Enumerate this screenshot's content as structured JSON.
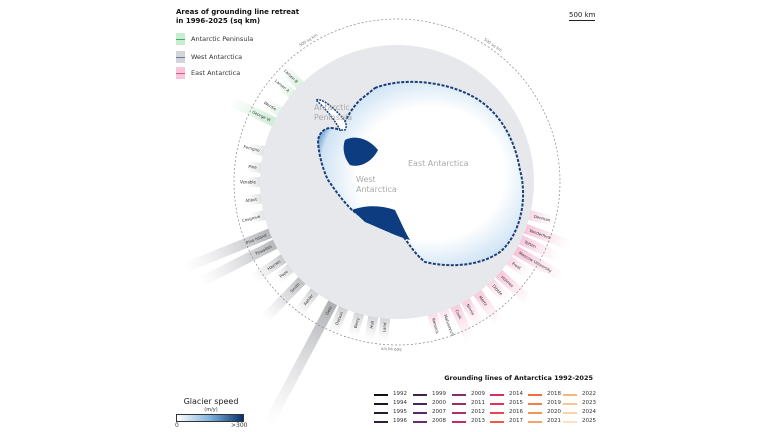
{
  "legend": {
    "title": "Areas of grounding line retreat in 1996-2025 (sq km)",
    "regions": [
      {
        "label": "Antarctic Peninsula",
        "color": "#c9ecd2",
        "line": "#3cb35a"
      },
      {
        "label": "West Antarctica",
        "color": "#d4d5d9",
        "line": "#5f7fa6"
      },
      {
        "label": "East Antarctica",
        "color": "#f7c6da",
        "line": "#e0528e"
      }
    ]
  },
  "scale_bar": "500 km",
  "ring_label": "500 sq km",
  "map_labels": {
    "peninsula": [
      "Antarctic",
      "Peninsula"
    ],
    "west": [
      "West",
      "Antarctica"
    ],
    "east": "East Antarctica"
  },
  "glaciers": [
    {
      "name": "Larsen B",
      "region": "peninsula",
      "area_sq_km": 450
    },
    {
      "name": "Larsen A",
      "region": "peninsula",
      "area_sq_km": 300
    },
    {
      "name": "Wordie",
      "region": "peninsula",
      "area_sq_km": 250
    },
    {
      "name": "George VI",
      "region": "peninsula",
      "area_sq_km": 900
    },
    {
      "name": "Ferrigno",
      "region": "west",
      "area_sq_km": 200
    },
    {
      "name": "Pine",
      "region": "west",
      "area_sq_km": 150
    },
    {
      "name": "Venable",
      "region": "west",
      "area_sq_km": 200
    },
    {
      "name": "Abbot",
      "region": "west",
      "area_sq_km": 150
    },
    {
      "name": "Cosgrove",
      "region": "west",
      "area_sq_km": 150
    },
    {
      "name": "Pine Island",
      "region": "west",
      "area_sq_km": 1750
    },
    {
      "name": "Thwaites",
      "region": "west",
      "area_sq_km": 1600
    },
    {
      "name": "Haynes",
      "region": "west",
      "area_sq_km": 700
    },
    {
      "name": "Pope",
      "region": "west",
      "area_sq_km": 350
    },
    {
      "name": "Smith",
      "region": "west",
      "area_sq_km": 1050
    },
    {
      "name": "Kohler",
      "region": "west",
      "area_sq_km": 550
    },
    {
      "name": "Getz",
      "region": "west",
      "area_sq_km": 2600
    },
    {
      "name": "Dotson",
      "region": "west",
      "area_sq_km": 550
    },
    {
      "name": "Berry",
      "region": "west",
      "area_sq_km": 450
    },
    {
      "name": "Hull",
      "region": "west",
      "area_sq_km": 450
    },
    {
      "name": "Land",
      "region": "west",
      "area_sq_km": 450
    },
    {
      "name": "Rennick",
      "region": "east",
      "area_sq_km": 350
    },
    {
      "name": "Matusevich",
      "region": "east",
      "area_sq_km": 250
    },
    {
      "name": "Cook",
      "region": "east",
      "area_sq_km": 700
    },
    {
      "name": "Ninnis",
      "region": "east",
      "area_sq_km": 550
    },
    {
      "name": "Mertz",
      "region": "east",
      "area_sq_km": 700
    },
    {
      "name": "Dibble",
      "region": "east",
      "area_sq_km": 450
    },
    {
      "name": "Holmes",
      "region": "east",
      "area_sq_km": 800
    },
    {
      "name": "Frost",
      "region": "east",
      "area_sq_km": 450
    },
    {
      "name": "Moscow University",
      "region": "east",
      "area_sq_km": 1050
    },
    {
      "name": "Totten",
      "region": "east",
      "area_sq_km": 800
    },
    {
      "name": "Vanderford",
      "region": "east",
      "area_sq_km": 900
    },
    {
      "name": "Denman",
      "region": "east",
      "area_sq_km": 450
    }
  ],
  "grounding_lines": {
    "title": "Grounding lines of Antarctica 1992-2025",
    "years": [
      {
        "year": "1992",
        "color": "#111111"
      },
      {
        "year": "1994",
        "color": "#1a1526"
      },
      {
        "year": "1995",
        "color": "#231a33"
      },
      {
        "year": "1996",
        "color": "#2e2040"
      },
      {
        "year": "1999",
        "color": "#3d2352"
      },
      {
        "year": "2000",
        "color": "#4a2560"
      },
      {
        "year": "2007",
        "color": "#5c2868"
      },
      {
        "year": "2008",
        "color": "#6c2a6e"
      },
      {
        "year": "2009",
        "color": "#852c72"
      },
      {
        "year": "2011",
        "color": "#9a2c70"
      },
      {
        "year": "2012",
        "color": "#b02c6c"
      },
      {
        "year": "2013",
        "color": "#c22d66"
      },
      {
        "year": "2014",
        "color": "#d5305e"
      },
      {
        "year": "2015",
        "color": "#e03558"
      },
      {
        "year": "2016",
        "color": "#e94550"
      },
      {
        "year": "2017",
        "color": "#ef5848"
      },
      {
        "year": "2018",
        "color": "#f26c44"
      },
      {
        "year": "2019",
        "color": "#f47f48"
      },
      {
        "year": "2020",
        "color": "#f59254"
      },
      {
        "year": "2021",
        "color": "#f7a463"
      },
      {
        "year": "2022",
        "color": "#f8b577"
      },
      {
        "year": "2023",
        "color": "#f9c48d"
      },
      {
        "year": "2024",
        "color": "#fad3a6"
      },
      {
        "year": "2025",
        "color": "#fbe1c0"
      }
    ]
  },
  "glacier_speed": {
    "title": "Glacier speed",
    "unit": "(m/y)",
    "min": "0",
    "max": ">300"
  }
}
